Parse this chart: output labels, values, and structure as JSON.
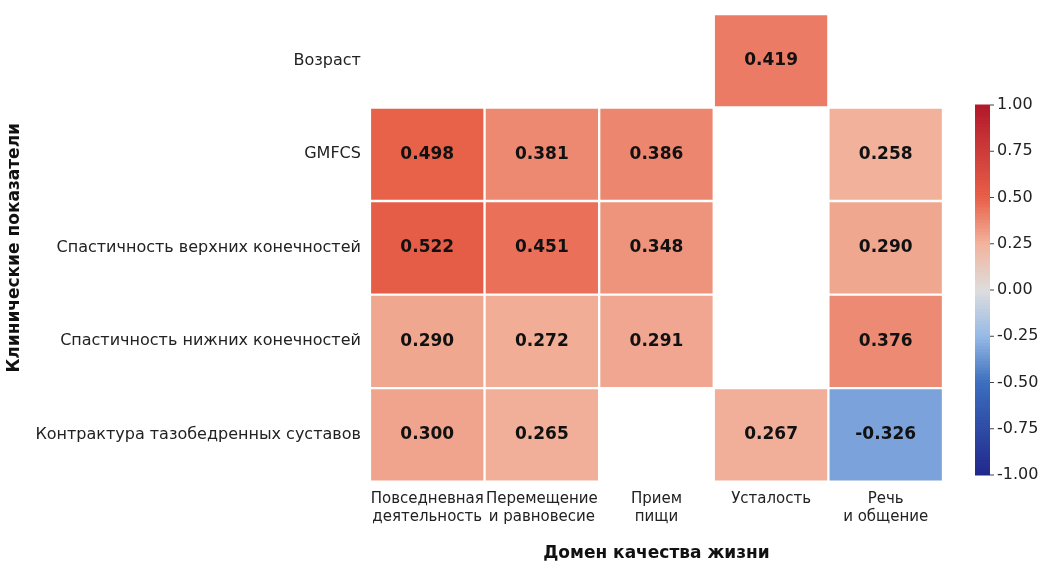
{
  "chart_data": {
    "type": "heatmap",
    "xlabel": "Домен качества жизни",
    "ylabel": "Клинические показатели",
    "clabel": null,
    "categories": [
      "Повседневная деятельность",
      "Перемещение и равновесие",
      "Прием пищи",
      "Усталость",
      "Речь и общение"
    ],
    "y_categories": [
      "Возраст",
      "GMFCS",
      "Спастичность верхних конечностей",
      "Спастичность нижних конечностей",
      "Контрактура тазобедренных суставов"
    ],
    "cells": [
      [
        null,
        null,
        null,
        0.419,
        null
      ],
      [
        0.498,
        0.381,
        0.386,
        null,
        0.258
      ],
      [
        0.522,
        0.451,
        0.348,
        null,
        0.29
      ],
      [
        0.29,
        0.272,
        0.291,
        null,
        0.376
      ],
      [
        0.3,
        0.265,
        null,
        0.267,
        -0.326
      ]
    ],
    "cell_labels": [
      [
        null,
        null,
        null,
        "0.419",
        null
      ],
      [
        "0.498",
        "0.381",
        "0.386",
        null,
        "0.258"
      ],
      [
        "0.522",
        "0.451",
        "0.348",
        null,
        "0.290"
      ],
      [
        "0.290",
        "0.272",
        "0.291",
        null,
        "0.376"
      ],
      [
        "0.300",
        "0.265",
        null,
        "0.267",
        "-0.326"
      ]
    ],
    "clim": [
      -1,
      1
    ],
    "cticks": [
      {
        "value": -1,
        "label": "-1.00"
      },
      {
        "value": -0.75,
        "label": "-0.75"
      },
      {
        "value": -0.5,
        "label": "-0.50"
      },
      {
        "value": -0.25,
        "label": "-0.25"
      },
      {
        "value": 0,
        "label": "0.00"
      },
      {
        "value": 0.25,
        "label": "0.25"
      },
      {
        "value": 0.5,
        "label": "0.50"
      },
      {
        "value": 0.75,
        "label": "0.75"
      },
      {
        "value": 1,
        "label": "1.00"
      }
    ]
  }
}
